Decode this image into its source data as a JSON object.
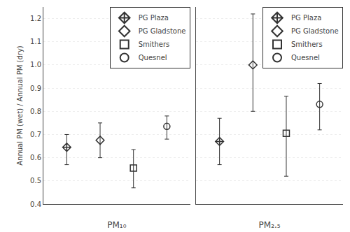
{
  "chart_data": [
    {
      "type": "scatter",
      "xlabel": "PM₁₀",
      "ylabel": "Annual PM (wet) / Annual PM (dry)",
      "color": "#333333",
      "grid": true,
      "legend": "upper right",
      "tick_labels": "y",
      "xlim": [
        0.3,
        4.7
      ],
      "ylim": [
        0.4,
        1.25
      ],
      "yticks": [
        0.4,
        0.5,
        0.6,
        0.7,
        0.8,
        0.9,
        {
          "value": 1.0,
          "label": "1.0"
        },
        1.1,
        1.2
      ],
      "series": [
        {
          "name": "PG Plaza",
          "marker": "diamond-cross",
          "x": [
            1
          ],
          "values": [
            0.645
          ],
          "err_low": [
            0.075
          ],
          "err_high": [
            0.055
          ]
        },
        {
          "name": "PG Gladstone",
          "marker": "diamond",
          "x": [
            2
          ],
          "values": [
            0.675
          ],
          "err_low": [
            0.075
          ],
          "err_high": [
            0.075
          ]
        },
        {
          "name": "Smithers",
          "marker": "square",
          "x": [
            3
          ],
          "values": [
            0.555
          ],
          "err_low": [
            0.085
          ],
          "err_high": [
            0.08
          ]
        },
        {
          "name": "Quesnel",
          "marker": "circle",
          "x": [
            4
          ],
          "values": [
            0.735
          ],
          "err_low": [
            0.055
          ],
          "err_high": [
            0.045
          ]
        }
      ]
    },
    {
      "type": "scatter",
      "xlabel": "PM₂.₅",
      "color": "#333333",
      "grid": true,
      "legend": "upper right",
      "tick_labels": false,
      "xlim": [
        0.3,
        4.7
      ],
      "ylim": [
        0.4,
        1.25
      ],
      "yticks": [
        0.4,
        0.5,
        0.6,
        0.7,
        0.8,
        0.9,
        {
          "value": 1.0,
          "label": "1.0"
        },
        1.1,
        1.2
      ],
      "series": [
        {
          "name": "PG Plaza",
          "marker": "diamond-cross",
          "x": [
            1
          ],
          "values": [
            0.67
          ],
          "err_low": [
            0.1
          ],
          "err_high": [
            0.1
          ]
        },
        {
          "name": "PG Gladstone",
          "marker": "diamond",
          "x": [
            2
          ],
          "values": [
            1.0
          ],
          "err_low": [
            0.2
          ],
          "err_high": [
            0.22
          ]
        },
        {
          "name": "Smithers",
          "marker": "square",
          "x": [
            3
          ],
          "values": [
            0.705
          ],
          "err_low": [
            0.185
          ],
          "err_high": [
            0.16
          ]
        },
        {
          "name": "Quesnel",
          "marker": "circle",
          "x": [
            4
          ],
          "values": [
            0.83
          ],
          "err_low": [
            0.11
          ],
          "err_high": [
            0.09
          ]
        }
      ]
    }
  ]
}
